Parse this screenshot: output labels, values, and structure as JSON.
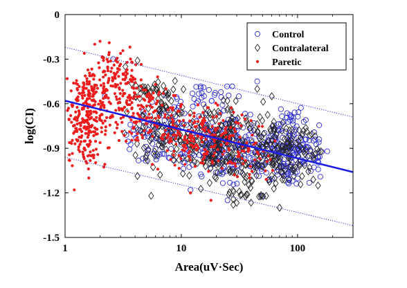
{
  "chart_data": {
    "type": "scatter",
    "xlabel": "Area(uV·Sec)",
    "ylabel": "log(CI)",
    "xscale": "log",
    "xlim": [
      1,
      300
    ],
    "ylim": [
      -1.5,
      0
    ],
    "xticks": [
      1,
      10,
      100
    ],
    "xtick_labels": [
      "1",
      "10",
      "100"
    ],
    "yticks": [
      0,
      -0.3,
      -0.6,
      -0.9,
      -1.2,
      -1.5
    ],
    "ytick_labels": [
      "0",
      "-0.3",
      "-0.6",
      "-0.9",
      "-1.2",
      "-1.5"
    ],
    "grid": false,
    "legend_position": "top-right",
    "series": [
      {
        "name": "Control",
        "marker": "open-circle",
        "color": "#2b2bd9",
        "clusters": [
          {
            "x": [
              3,
              15
            ],
            "y": [
              -1.05,
              -0.55
            ],
            "n": 90
          },
          {
            "x": [
              10,
              60
            ],
            "y": [
              -1.15,
              -0.6
            ],
            "n": 200
          },
          {
            "x": [
              40,
              180
            ],
            "y": [
              -1.15,
              -0.7
            ],
            "n": 170
          },
          {
            "x": [
              5,
              40
            ],
            "y": [
              -0.65,
              -0.45
            ],
            "n": 30
          },
          {
            "x": [
              60,
              120
            ],
            "y": [
              -0.78,
              -0.62
            ],
            "n": 20
          }
        ],
        "points": [
          [
            2.2,
            -0.55
          ],
          [
            2.6,
            -0.3
          ],
          [
            12,
            -1.18
          ],
          [
            50,
            -1.22
          ],
          [
            180,
            -0.92
          ],
          [
            45,
            -0.45
          ],
          [
            25,
            -1.25
          ]
        ]
      },
      {
        "name": "Contralateral",
        "marker": "open-diamond",
        "color": "#222222",
        "clusters": [
          {
            "x": [
              3,
              15
            ],
            "y": [
              -1.1,
              -0.45
            ],
            "n": 90
          },
          {
            "x": [
              8,
              60
            ],
            "y": [
              -1.2,
              -0.55
            ],
            "n": 220
          },
          {
            "x": [
              30,
              170
            ],
            "y": [
              -1.2,
              -0.7
            ],
            "n": 140
          },
          {
            "x": [
              3,
              10
            ],
            "y": [
              -0.6,
              -0.4
            ],
            "n": 30
          },
          {
            "x": [
              15,
              80
            ],
            "y": [
              -1.28,
              -1.15
            ],
            "n": 20
          }
        ],
        "points": [
          [
            3.3,
            -0.35
          ],
          [
            4.2,
            -0.31
          ],
          [
            28,
            -1.28
          ],
          [
            70,
            -1.3
          ],
          [
            150,
            -1.15
          ],
          [
            5.5,
            -1.22
          ],
          [
            45,
            -0.5
          ],
          [
            60,
            -0.55
          ]
        ]
      },
      {
        "name": "Paretic",
        "marker": "dot",
        "color": "#ee1c1c",
        "clusters": [
          {
            "x": [
              1,
              2.5
            ],
            "y": [
              -1.05,
              -0.4
            ],
            "n": 240
          },
          {
            "x": [
              1.4,
              5
            ],
            "y": [
              -0.65,
              -0.2
            ],
            "n": 130
          },
          {
            "x": [
              2,
              10
            ],
            "y": [
              -0.9,
              -0.4
            ],
            "n": 150
          },
          {
            "x": [
              5,
              30
            ],
            "y": [
              -1.1,
              -0.55
            ],
            "n": 170
          },
          {
            "x": [
              15,
              70
            ],
            "y": [
              -1.15,
              -0.65
            ],
            "n": 80
          },
          {
            "x": [
              1,
              1.8
            ],
            "y": [
              -0.6,
              -0.4
            ],
            "n": 20
          }
        ],
        "points": [
          [
            1.2,
            -1.18
          ],
          [
            1.6,
            -1.1
          ],
          [
            1.8,
            -0.2
          ],
          [
            2.0,
            -0.18
          ],
          [
            2.4,
            -0.19
          ],
          [
            18,
            -1.25
          ],
          [
            12,
            -1.2
          ]
        ]
      }
    ],
    "regression": {
      "color": "#1a1ae6",
      "style": "solid",
      "x": [
        1,
        300
      ],
      "y": [
        -0.58,
        -1.06
      ]
    },
    "bounds": [
      {
        "color": "#2b2bd9",
        "style": "dotted",
        "x": [
          1,
          300
        ],
        "y": [
          -0.22,
          -0.69
        ]
      },
      {
        "color": "#2b2bd9",
        "style": "dotted",
        "x": [
          1,
          300
        ],
        "y": [
          -0.96,
          -1.42
        ]
      }
    ]
  }
}
